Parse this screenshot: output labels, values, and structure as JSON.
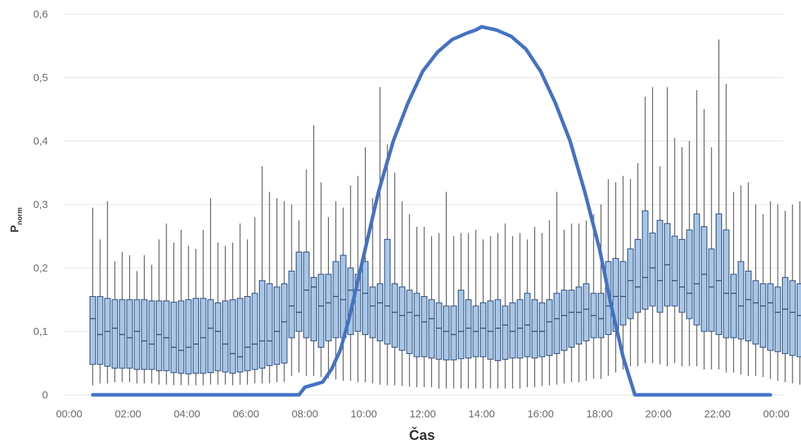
{
  "chart_data": {
    "type": "box",
    "xlabel": "Čas",
    "ylabel_main": "P",
    "ylabel_sub": "norm",
    "ylim": [
      0,
      0.6
    ],
    "y_ticks": [
      "0",
      "0,1",
      "0,2",
      "0,3",
      "0,4",
      "0,5",
      "0,6"
    ],
    "x_ticks": [
      "00:00",
      "02:00",
      "04:00",
      "06:00",
      "08:00",
      "10:00",
      "12:00",
      "14:00",
      "16:00",
      "18:00",
      "20:00",
      "22:00",
      "00:00"
    ],
    "x_range_hours": [
      0,
      24
    ],
    "grid": "horizontal",
    "box_interval_hours": 0.25,
    "box_first_center_hours": 0.8,
    "box_stats": {
      "medians": [
        0.12,
        0.095,
        0.1,
        0.105,
        0.095,
        0.09,
        0.1,
        0.085,
        0.08,
        0.095,
        0.09,
        0.075,
        0.07,
        0.075,
        0.08,
        0.09,
        0.105,
        0.1,
        0.08,
        0.065,
        0.06,
        0.075,
        0.08,
        0.085,
        0.085,
        0.1,
        0.115,
        0.14,
        0.13,
        0.165,
        0.17,
        0.14,
        0.145,
        0.155,
        0.15,
        0.165,
        0.165,
        0.16,
        0.14,
        0.145,
        0.14,
        0.13,
        0.125,
        0.13,
        0.125,
        0.115,
        0.12,
        0.105,
        0.1,
        0.095,
        0.1,
        0.105,
        0.1,
        0.105,
        0.1,
        0.105,
        0.11,
        0.1,
        0.105,
        0.11,
        0.1,
        0.1,
        0.115,
        0.12,
        0.125,
        0.13,
        0.13,
        0.135,
        0.125,
        0.12,
        0.14,
        0.155,
        0.155,
        0.18,
        0.17,
        0.185,
        0.2,
        0.18,
        0.205,
        0.18,
        0.17,
        0.16,
        0.175,
        0.19,
        0.17,
        0.18,
        0.16,
        0.16,
        0.14,
        0.15,
        0.145,
        0.14,
        0.145,
        0.13,
        0.135,
        0.13,
        0.125,
        0.12,
        0.12,
        0.115
      ],
      "q1": [
        0.048,
        0.048,
        0.045,
        0.042,
        0.042,
        0.042,
        0.04,
        0.04,
        0.04,
        0.038,
        0.038,
        0.035,
        0.034,
        0.033,
        0.034,
        0.034,
        0.035,
        0.038,
        0.036,
        0.034,
        0.036,
        0.038,
        0.04,
        0.042,
        0.046,
        0.048,
        0.05,
        0.09,
        0.1,
        0.09,
        0.085,
        0.075,
        0.085,
        0.09,
        0.09,
        0.095,
        0.1,
        0.095,
        0.09,
        0.085,
        0.08,
        0.075,
        0.07,
        0.065,
        0.06,
        0.06,
        0.058,
        0.056,
        0.055,
        0.055,
        0.057,
        0.058,
        0.06,
        0.06,
        0.056,
        0.054,
        0.056,
        0.058,
        0.058,
        0.06,
        0.058,
        0.06,
        0.062,
        0.065,
        0.07,
        0.075,
        0.08,
        0.085,
        0.09,
        0.09,
        0.095,
        0.1,
        0.11,
        0.12,
        0.13,
        0.135,
        0.14,
        0.13,
        0.14,
        0.14,
        0.13,
        0.12,
        0.11,
        0.1,
        0.1,
        0.095,
        0.09,
        0.09,
        0.088,
        0.085,
        0.08,
        0.075,
        0.07,
        0.068,
        0.065,
        0.062,
        0.06,
        0.058,
        0.058,
        0.058
      ],
      "q3": [
        0.155,
        0.155,
        0.152,
        0.15,
        0.15,
        0.15,
        0.15,
        0.15,
        0.148,
        0.148,
        0.148,
        0.146,
        0.148,
        0.15,
        0.152,
        0.152,
        0.15,
        0.145,
        0.148,
        0.15,
        0.152,
        0.155,
        0.16,
        0.18,
        0.175,
        0.17,
        0.175,
        0.195,
        0.225,
        0.225,
        0.185,
        0.19,
        0.19,
        0.21,
        0.22,
        0.2,
        0.19,
        0.21,
        0.17,
        0.175,
        0.245,
        0.175,
        0.17,
        0.165,
        0.16,
        0.155,
        0.15,
        0.145,
        0.14,
        0.14,
        0.165,
        0.15,
        0.14,
        0.145,
        0.148,
        0.15,
        0.14,
        0.145,
        0.15,
        0.16,
        0.15,
        0.145,
        0.15,
        0.16,
        0.165,
        0.165,
        0.17,
        0.175,
        0.16,
        0.16,
        0.21,
        0.215,
        0.21,
        0.23,
        0.245,
        0.29,
        0.255,
        0.275,
        0.27,
        0.25,
        0.245,
        0.26,
        0.285,
        0.265,
        0.23,
        0.285,
        0.26,
        0.19,
        0.21,
        0.195,
        0.18,
        0.175,
        0.175,
        0.17,
        0.185,
        0.18,
        0.175,
        0.175,
        0.175,
        0.16
      ],
      "whisker_high": [
        0.295,
        0.245,
        0.305,
        0.21,
        0.225,
        0.22,
        0.195,
        0.22,
        0.205,
        0.245,
        0.27,
        0.24,
        0.26,
        0.235,
        0.23,
        0.26,
        0.31,
        0.24,
        0.235,
        0.24,
        0.27,
        0.245,
        0.28,
        0.36,
        0.32,
        0.31,
        0.305,
        0.3,
        0.275,
        0.355,
        0.425,
        0.335,
        0.28,
        0.305,
        0.295,
        0.33,
        0.345,
        0.39,
        0.31,
        0.485,
        0.395,
        0.35,
        0.305,
        0.285,
        0.265,
        0.265,
        0.25,
        0.255,
        0.32,
        0.25,
        0.255,
        0.255,
        0.26,
        0.245,
        0.25,
        0.255,
        0.27,
        0.25,
        0.255,
        0.245,
        0.265,
        0.255,
        0.275,
        0.32,
        0.26,
        0.27,
        0.27,
        0.275,
        0.285,
        0.3,
        0.34,
        0.335,
        0.345,
        0.34,
        0.365,
        0.47,
        0.485,
        0.36,
        0.485,
        0.405,
        0.39,
        0.4,
        0.48,
        0.45,
        0.39,
        0.56,
        0.49,
        0.32,
        0.33,
        0.335,
        0.3,
        0.285,
        0.305,
        0.3,
        0.29,
        0.3,
        0.305,
        0.31,
        0.3,
        0.295
      ],
      "whisker_low": [
        0.015,
        0.018,
        0.018,
        0.02,
        0.02,
        0.02,
        0.018,
        0.018,
        0.018,
        0.016,
        0.016,
        0.015,
        0.015,
        0.015,
        0.015,
        0.015,
        0.016,
        0.016,
        0.016,
        0.015,
        0.016,
        0.016,
        0.018,
        0.018,
        0.018,
        0.02,
        0.02,
        0.03,
        0.035,
        0.03,
        0.03,
        0.028,
        0.026,
        0.024,
        0.022,
        0.022,
        0.02,
        0.02,
        0.018,
        0.016,
        0.015,
        0.015,
        0.014,
        0.013,
        0.012,
        0.012,
        0.012,
        0.01,
        0.01,
        0.01,
        0.01,
        0.01,
        0.01,
        0.01,
        0.01,
        0.01,
        0.01,
        0.01,
        0.01,
        0.012,
        0.012,
        0.014,
        0.015,
        0.016,
        0.018,
        0.02,
        0.02,
        0.022,
        0.025,
        0.025,
        0.03,
        0.035,
        0.04,
        0.045,
        0.045,
        0.05,
        0.05,
        0.048,
        0.045,
        0.05,
        0.045,
        0.045,
        0.045,
        0.04,
        0.04,
        0.04,
        0.035,
        0.035,
        0.032,
        0.03,
        0.03,
        0.028,
        0.025,
        0.022,
        0.02,
        0.018,
        0.016,
        0.015,
        0.015,
        0.015
      ]
    },
    "line": {
      "x_hours": [
        0.8,
        7.5,
        7.8,
        8.0,
        8.6,
        8.9,
        9.2,
        9.5,
        10.0,
        10.5,
        11.0,
        11.5,
        12.0,
        12.5,
        13.0,
        13.5,
        13.8,
        14.0,
        14.2,
        14.5,
        15.0,
        15.5,
        16.0,
        16.5,
        17.0,
        17.5,
        18.0,
        18.4,
        18.8,
        19.2,
        23.8
      ],
      "y": [
        0,
        0,
        0,
        0.012,
        0.02,
        0.04,
        0.07,
        0.12,
        0.22,
        0.32,
        0.4,
        0.46,
        0.51,
        0.54,
        0.56,
        0.57,
        0.575,
        0.58,
        0.578,
        0.575,
        0.565,
        0.545,
        0.51,
        0.46,
        0.4,
        0.32,
        0.23,
        0.14,
        0.06,
        0,
        0
      ]
    },
    "colors": {
      "box_fill": "#a7c6e7",
      "box_stroke": "#2e4c78",
      "whisker": "#555555",
      "line": "#4472c4",
      "grid": "#e3e3e3",
      "tick_text": "#6b6b6b",
      "title_text": "#333333"
    }
  }
}
